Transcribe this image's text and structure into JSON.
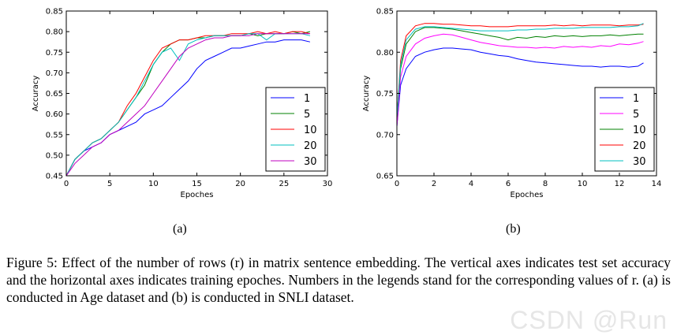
{
  "chart_data": [
    {
      "type": "line",
      "panel_label": "(a)",
      "xlabel": "Epoches",
      "ylabel": "Accuracy",
      "xlim": [
        0,
        30
      ],
      "ylim": [
        0.45,
        0.85
      ],
      "xticks": [
        0,
        5,
        10,
        15,
        20,
        25,
        30
      ],
      "yticks": [
        0.45,
        0.5,
        0.55,
        0.6,
        0.65,
        0.7,
        0.75,
        0.8,
        0.85
      ],
      "xtick_labels": [
        "0",
        "5",
        "10",
        "15",
        "20",
        "25",
        "30"
      ],
      "ytick_labels": [
        "0.45",
        "0.50",
        "0.55",
        "0.60",
        "0.65",
        "0.70",
        "0.75",
        "0.80",
        "0.85"
      ],
      "legend_position": "lower-right",
      "series": [
        {
          "name": "1",
          "color": "#0000ff",
          "x": [
            0,
            1,
            2,
            3,
            4,
            5,
            6,
            7,
            8,
            9,
            10,
            11,
            12,
            13,
            14,
            15,
            16,
            17,
            18,
            19,
            20,
            21,
            22,
            23,
            24,
            25,
            26,
            27,
            28
          ],
          "y": [
            0.45,
            0.49,
            0.51,
            0.52,
            0.53,
            0.55,
            0.56,
            0.57,
            0.58,
            0.6,
            0.61,
            0.62,
            0.64,
            0.66,
            0.68,
            0.71,
            0.73,
            0.74,
            0.75,
            0.76,
            0.76,
            0.765,
            0.77,
            0.775,
            0.775,
            0.78,
            0.78,
            0.78,
            0.775
          ]
        },
        {
          "name": "5",
          "color": "#008000",
          "x": [
            0,
            1,
            2,
            3,
            4,
            5,
            6,
            7,
            8,
            9,
            10,
            11,
            12,
            13,
            14,
            15,
            16,
            17,
            18,
            19,
            20,
            21,
            22,
            23,
            24,
            25,
            26,
            27,
            28
          ],
          "y": [
            0.45,
            0.49,
            0.51,
            0.53,
            0.54,
            0.56,
            0.58,
            0.61,
            0.64,
            0.67,
            0.72,
            0.75,
            0.77,
            0.78,
            0.78,
            0.785,
            0.785,
            0.79,
            0.79,
            0.79,
            0.79,
            0.795,
            0.79,
            0.795,
            0.795,
            0.795,
            0.8,
            0.795,
            0.8
          ]
        },
        {
          "name": "10",
          "color": "#ff0000",
          "x": [
            0,
            1,
            2,
            3,
            4,
            5,
            6,
            7,
            8,
            9,
            10,
            11,
            12,
            13,
            14,
            15,
            16,
            17,
            18,
            19,
            20,
            21,
            22,
            23,
            24,
            25,
            26,
            27,
            28
          ],
          "y": [
            0.45,
            0.49,
            0.51,
            0.53,
            0.54,
            0.56,
            0.58,
            0.62,
            0.65,
            0.69,
            0.73,
            0.76,
            0.77,
            0.78,
            0.78,
            0.785,
            0.79,
            0.79,
            0.79,
            0.795,
            0.795,
            0.795,
            0.8,
            0.795,
            0.8,
            0.795,
            0.8,
            0.8,
            0.795
          ]
        },
        {
          "name": "20",
          "color": "#00bfbf",
          "x": [
            0,
            1,
            2,
            3,
            4,
            5,
            6,
            7,
            8,
            9,
            10,
            11,
            12,
            13,
            14,
            15,
            16,
            17,
            18,
            19,
            20,
            21,
            22,
            23,
            24,
            25,
            26,
            27,
            28
          ],
          "y": [
            0.45,
            0.49,
            0.51,
            0.53,
            0.54,
            0.56,
            0.58,
            0.61,
            0.64,
            0.68,
            0.72,
            0.75,
            0.76,
            0.73,
            0.77,
            0.78,
            0.785,
            0.79,
            0.79,
            0.79,
            0.79,
            0.795,
            0.795,
            0.78,
            0.795,
            0.795,
            0.795,
            0.795,
            0.79
          ]
        },
        {
          "name": "30",
          "color": "#bf00bf",
          "x": [
            0,
            1,
            2,
            3,
            4,
            5,
            6,
            7,
            8,
            9,
            10,
            11,
            12,
            13,
            14,
            15,
            16,
            17,
            18,
            19,
            20,
            21,
            22,
            23,
            24,
            25,
            26,
            27,
            28
          ],
          "y": [
            0.45,
            0.48,
            0.5,
            0.52,
            0.53,
            0.55,
            0.56,
            0.58,
            0.6,
            0.62,
            0.65,
            0.68,
            0.71,
            0.74,
            0.76,
            0.77,
            0.78,
            0.785,
            0.785,
            0.79,
            0.79,
            0.79,
            0.795,
            0.795,
            0.795,
            0.795,
            0.795,
            0.795,
            0.795
          ]
        }
      ]
    },
    {
      "type": "line",
      "panel_label": "(b)",
      "xlabel": "Epoches",
      "ylabel": "Accuracy",
      "xlim": [
        0,
        14
      ],
      "ylim": [
        0.65,
        0.85
      ],
      "xticks": [
        0,
        2,
        4,
        6,
        8,
        10,
        12,
        14
      ],
      "yticks": [
        0.65,
        0.7,
        0.75,
        0.8,
        0.85
      ],
      "xtick_labels": [
        "0",
        "2",
        "4",
        "6",
        "8",
        "10",
        "12",
        "14"
      ],
      "ytick_labels": [
        "0.65",
        "0.70",
        "0.75",
        "0.80",
        "0.85"
      ],
      "legend_position": "lower-right",
      "series": [
        {
          "name": "1",
          "color": "#0000ff",
          "x": [
            0,
            0.2,
            0.5,
            1,
            1.5,
            2,
            2.5,
            3,
            3.5,
            4,
            4.5,
            5,
            5.5,
            6,
            6.5,
            7,
            7.5,
            8,
            8.5,
            9,
            9.5,
            10,
            10.5,
            11,
            11.5,
            12,
            12.5,
            13,
            13.3
          ],
          "y": [
            0.71,
            0.76,
            0.78,
            0.795,
            0.8,
            0.803,
            0.805,
            0.805,
            0.804,
            0.803,
            0.8,
            0.798,
            0.796,
            0.795,
            0.792,
            0.79,
            0.788,
            0.787,
            0.786,
            0.785,
            0.784,
            0.783,
            0.783,
            0.782,
            0.783,
            0.783,
            0.782,
            0.783,
            0.787
          ]
        },
        {
          "name": "5",
          "color": "#ff00ff",
          "x": [
            0,
            0.2,
            0.5,
            1,
            1.5,
            2,
            2.5,
            3,
            3.5,
            4,
            4.5,
            5,
            5.5,
            6,
            6.5,
            7,
            7.5,
            8,
            8.5,
            9,
            9.5,
            10,
            10.5,
            11,
            11.5,
            12,
            12.5,
            13,
            13.3
          ],
          "y": [
            0.71,
            0.77,
            0.795,
            0.81,
            0.817,
            0.82,
            0.822,
            0.821,
            0.818,
            0.815,
            0.812,
            0.81,
            0.808,
            0.807,
            0.806,
            0.806,
            0.805,
            0.806,
            0.805,
            0.807,
            0.806,
            0.807,
            0.806,
            0.808,
            0.807,
            0.81,
            0.809,
            0.811,
            0.813
          ]
        },
        {
          "name": "10",
          "color": "#008000",
          "x": [
            0,
            0.2,
            0.5,
            1,
            1.5,
            2,
            2.5,
            3,
            3.5,
            4,
            4.5,
            5,
            5.5,
            6,
            6.5,
            7,
            7.5,
            8,
            8.5,
            9,
            9.5,
            10,
            10.5,
            11,
            11.5,
            12,
            12.5,
            13,
            13.3
          ],
          "y": [
            0.72,
            0.78,
            0.81,
            0.825,
            0.83,
            0.83,
            0.829,
            0.828,
            0.826,
            0.824,
            0.822,
            0.82,
            0.818,
            0.815,
            0.818,
            0.817,
            0.819,
            0.818,
            0.82,
            0.819,
            0.82,
            0.819,
            0.82,
            0.82,
            0.821,
            0.82,
            0.821,
            0.822,
            0.822
          ]
        },
        {
          "name": "20",
          "color": "#ff0000",
          "x": [
            0,
            0.2,
            0.5,
            1,
            1.5,
            2,
            2.5,
            3,
            3.5,
            4,
            4.5,
            5,
            5.5,
            6,
            6.5,
            7,
            7.5,
            8,
            8.5,
            9,
            9.5,
            10,
            10.5,
            11,
            11.5,
            12,
            12.5,
            13,
            13.3
          ],
          "y": [
            0.72,
            0.79,
            0.82,
            0.832,
            0.835,
            0.835,
            0.834,
            0.834,
            0.833,
            0.832,
            0.832,
            0.831,
            0.831,
            0.831,
            0.832,
            0.832,
            0.832,
            0.832,
            0.833,
            0.832,
            0.833,
            0.832,
            0.833,
            0.833,
            0.833,
            0.832,
            0.833,
            0.833,
            0.834
          ]
        },
        {
          "name": "30",
          "color": "#00bfbf",
          "x": [
            0,
            0.2,
            0.5,
            1,
            1.5,
            2,
            2.5,
            3,
            3.5,
            4,
            4.5,
            5,
            5.5,
            6,
            6.5,
            7,
            7.5,
            8,
            8.5,
            9,
            9.5,
            10,
            10.5,
            11,
            11.5,
            12,
            12.5,
            13,
            13.3
          ],
          "y": [
            0.72,
            0.785,
            0.815,
            0.828,
            0.831,
            0.831,
            0.83,
            0.829,
            0.828,
            0.827,
            0.826,
            0.826,
            0.826,
            0.826,
            0.827,
            0.827,
            0.828,
            0.828,
            0.829,
            0.829,
            0.829,
            0.83,
            0.83,
            0.83,
            0.83,
            0.831,
            0.831,
            0.832,
            0.835
          ]
        }
      ]
    }
  ],
  "caption": {
    "text": "Figure 5: Effect of the number of rows (r) in matrix sentence embedding. The vertical axes indicates test set accuracy and the horizontal axes indicates training epoches. Numbers in the legends stand for the corresponding values of r. (a) is conducted in Age dataset and (b) is conducted in SNLI dataset."
  },
  "watermark": "CSDN @Run"
}
